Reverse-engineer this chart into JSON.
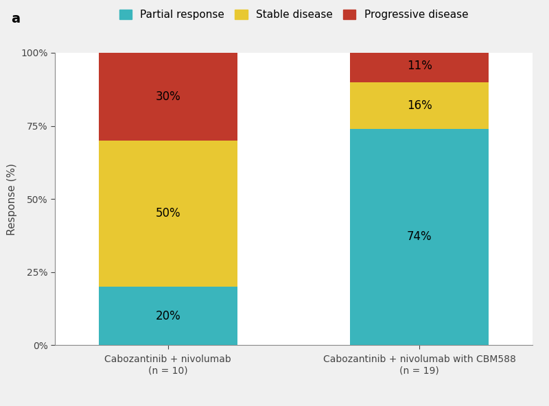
{
  "categories": [
    "Cabozantinib + nivolumab\n(n = 10)",
    "Cabozantinib + nivolumab with CBM588\n(n = 19)"
  ],
  "partial_response": [
    20,
    74
  ],
  "stable_disease": [
    50,
    16
  ],
  "progressive_disease": [
    30,
    11
  ],
  "colors": {
    "partial_response": "#3ab5bc",
    "stable_disease": "#e8c832",
    "progressive_disease": "#c0392b"
  },
  "legend_labels": [
    "Partial response",
    "Stable disease",
    "Progressive disease"
  ],
  "ylabel": "Response (%)",
  "yticks": [
    0,
    25,
    50,
    75,
    100
  ],
  "yticklabels": [
    "0%",
    "25%",
    "50%",
    "75%",
    "100%"
  ],
  "title_letter": "a",
  "bar_width": 0.55,
  "label_fontsize": 11,
  "tick_fontsize": 10,
  "legend_fontsize": 11,
  "annotation_fontsize": 12,
  "background_color": "#ffffff",
  "outer_bg_color": "#f0f0f0",
  "x_positions": [
    0.3,
    0.8
  ]
}
